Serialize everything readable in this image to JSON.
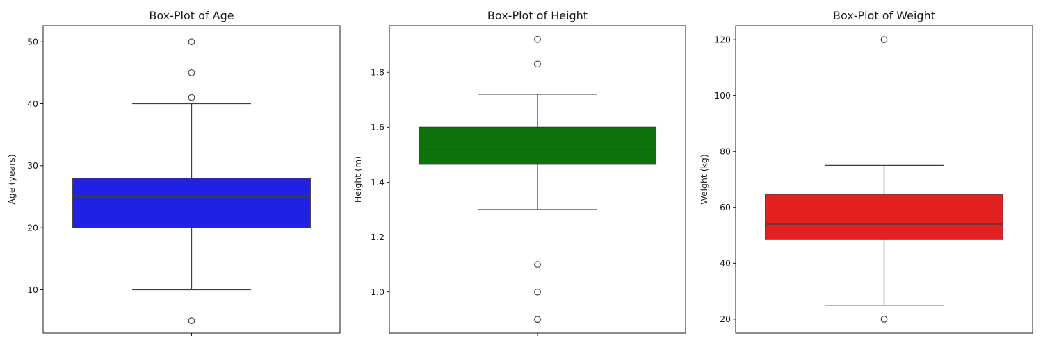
{
  "chart_data": [
    {
      "type": "box",
      "title": "Box-Plot of Age",
      "xlabel": "",
      "ylabel": "Age (years)",
      "ylim": [
        3,
        52.6
      ],
      "yticks": [
        10,
        20,
        30,
        40,
        50
      ],
      "ytick_labels": [
        "10",
        "20",
        "30",
        "40",
        "50"
      ],
      "color": "#2121e6",
      "stats": {
        "whisker_low": 10,
        "q1": 20,
        "median": 25,
        "q3": 28,
        "whisker_high": 40
      },
      "outliers": [
        5,
        41,
        45,
        50
      ],
      "grid": false,
      "legend": "none"
    },
    {
      "type": "box",
      "title": "Box-Plot of Height",
      "xlabel": "",
      "ylabel": "Height (m)",
      "ylim": [
        0.85,
        1.97
      ],
      "yticks": [
        1.0,
        1.2,
        1.4,
        1.6,
        1.8
      ],
      "ytick_labels": [
        "1.0",
        "1.2",
        "1.4",
        "1.6",
        "1.8"
      ],
      "color": "#0d730d",
      "stats": {
        "whisker_low": 1.3,
        "q1": 1.465,
        "median": 1.52,
        "q3": 1.6,
        "whisker_high": 1.72
      },
      "outliers": [
        0.9,
        1.0,
        1.1,
        1.83,
        1.92
      ],
      "grid": false,
      "legend": "none"
    },
    {
      "type": "box",
      "title": "Box-Plot of Weight",
      "xlabel": "",
      "ylabel": "Weight (kg)",
      "ylim": [
        15,
        125
      ],
      "yticks": [
        20,
        40,
        60,
        80,
        100,
        120
      ],
      "ytick_labels": [
        "20",
        "40",
        "60",
        "80",
        "100",
        "120"
      ],
      "color": "#e32121",
      "stats": {
        "whisker_low": 25,
        "q1": 48.5,
        "median": 54,
        "q3": 64.7,
        "whisker_high": 75
      },
      "outliers": [
        20,
        120
      ],
      "grid": false,
      "legend": "none"
    }
  ]
}
